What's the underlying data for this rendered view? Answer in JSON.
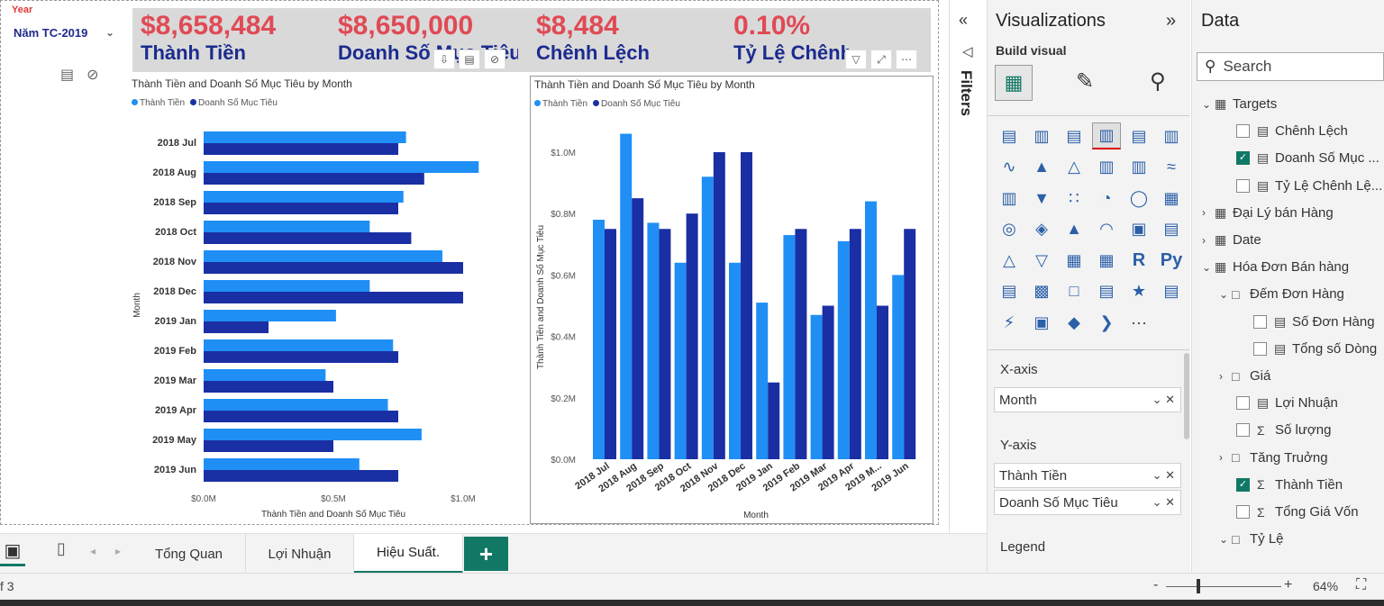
{
  "slicer": {
    "label": "Year",
    "value": "Năm TC-2019"
  },
  "kpis": [
    {
      "value": "$8,658,484",
      "label": "Thành Tiền"
    },
    {
      "value": "$8,650,000",
      "label": "Doanh Số Mục Tiêu"
    },
    {
      "value": "$8,484",
      "label": "Chênh Lệch"
    },
    {
      "value": "0.10%",
      "label": "Tỷ Lệ Chênh Lệch"
    }
  ],
  "colors": {
    "series1": "#1f8ff5",
    "series2": "#1a2fa3",
    "kpi_value": "#e04a55",
    "kpi_label": "#1b2b8f",
    "accent": "#117865"
  },
  "chart_data": [
    {
      "type": "bar",
      "orientation": "horizontal",
      "title": "Thành Tiền and Doanh Số Mục Tiêu by Month",
      "xlabel": "Thành Tiền and Doanh Số Mục Tiêu",
      "ylabel": "Month",
      "categories": [
        "2018 Jul",
        "2018 Aug",
        "2018 Sep",
        "2018 Oct",
        "2018 Nov",
        "2018 Dec",
        "2019 Jan",
        "2019 Feb",
        "2019 Mar",
        "2019 Apr",
        "2019 May",
        "2019 Jun"
      ],
      "series": [
        {
          "name": "Thành Tiền",
          "values": [
            0.78,
            1.06,
            0.77,
            0.64,
            0.92,
            0.64,
            0.51,
            0.73,
            0.47,
            0.71,
            0.84,
            0.6
          ]
        },
        {
          "name": "Doanh Số Mục Tiêu",
          "values": [
            0.75,
            0.85,
            0.75,
            0.8,
            1.0,
            1.0,
            0.25,
            0.75,
            0.5,
            0.75,
            0.5,
            0.75
          ]
        }
      ],
      "xticks": [
        "$0.0M",
        "$0.5M",
        "$1.0M"
      ],
      "xlim": [
        0,
        1.1
      ],
      "legend": "top-left"
    },
    {
      "type": "bar",
      "orientation": "vertical",
      "title": "Thành Tiền and Doanh Số Mục Tiêu by Month",
      "xlabel": "Month",
      "ylabel": "Thành Tiền and Doanh Số Mục Tiêu",
      "categories": [
        "2018 Jul",
        "2018 Aug",
        "2018 Sep",
        "2018 Oct",
        "2018 Nov",
        "2018 Dec",
        "2019 Jan",
        "2019 Feb",
        "2019 Mar",
        "2019 Apr",
        "2019 M...",
        "2019 Jun"
      ],
      "series": [
        {
          "name": "Thành Tiền",
          "values": [
            0.78,
            1.06,
            0.77,
            0.64,
            0.92,
            0.64,
            0.51,
            0.73,
            0.47,
            0.71,
            0.84,
            0.6
          ]
        },
        {
          "name": "Doanh Số Mục Tiêu",
          "values": [
            0.75,
            0.85,
            0.75,
            0.8,
            1.0,
            1.0,
            0.25,
            0.75,
            0.5,
            0.75,
            0.5,
            0.75
          ]
        }
      ],
      "yticks": [
        "$0.0M",
        "$0.2M",
        "$0.4M",
        "$0.6M",
        "$0.8M",
        "$1.0M"
      ],
      "ylim": [
        0,
        1.1
      ],
      "legend": "top-left"
    }
  ],
  "tabs": {
    "t1": "Tổng Quan",
    "t2": "Lợi Nhuận",
    "t3": "Hiệu Suất.",
    "add": "+"
  },
  "status": {
    "page": "f 3",
    "zoom": "64%",
    "minus": "-",
    "plus": "+"
  },
  "filters": {
    "label": "Filters"
  },
  "viz": {
    "title": "Visualizations",
    "build": "Build visual",
    "xaxis_label": "X-axis",
    "xaxis_field": "Month",
    "yaxis_label": "Y-axis",
    "yaxis_fields": [
      "Thành Tiền",
      "Doanh Số Mục Tiêu"
    ],
    "legend_label": "Legend",
    "icon_r": "R",
    "icon_py": "Py",
    "icon_more": "···"
  },
  "data_pane": {
    "title": "Data",
    "search": "Search",
    "rows": [
      {
        "text": "Targets",
        "type": "table",
        "indent": 0,
        "twisty": "open"
      },
      {
        "text": "Chênh Lệch",
        "type": "measure",
        "indent": 2,
        "checked": false
      },
      {
        "text": "Doanh Số Mục ...",
        "type": "measure",
        "indent": 2,
        "checked": true
      },
      {
        "text": "Tỷ Lệ Chênh Lệ...",
        "type": "measure",
        "indent": 2,
        "checked": false
      },
      {
        "text": "Đại Lý bán Hàng",
        "type": "table",
        "indent": 0,
        "twisty": "closed"
      },
      {
        "text": "Date",
        "type": "table",
        "indent": 0,
        "twisty": "closed"
      },
      {
        "text": "Hóa Đơn Bán hàng",
        "type": "table",
        "indent": 0,
        "twisty": "open"
      },
      {
        "text": "Đếm Đơn Hàng",
        "type": "folder",
        "indent": 1,
        "twisty": "open"
      },
      {
        "text": "Số Đơn Hàng",
        "type": "measure",
        "indent": 3,
        "checked": false
      },
      {
        "text": "Tổng số Dòng",
        "type": "measure",
        "indent": 3,
        "checked": false
      },
      {
        "text": "Giá",
        "type": "folder",
        "indent": 1,
        "twisty": "closed"
      },
      {
        "text": "Lợi Nhuận",
        "type": "measure",
        "indent": 2,
        "checked": false
      },
      {
        "text": "Số lượng",
        "type": "sum",
        "indent": 2,
        "checked": false
      },
      {
        "text": "Tăng Truởng",
        "type": "folder",
        "indent": 1,
        "twisty": "closed"
      },
      {
        "text": "Thành Tiền",
        "type": "sum",
        "indent": 2,
        "checked": true
      },
      {
        "text": "Tổng Giá Vốn",
        "type": "sum",
        "indent": 2,
        "checked": false
      },
      {
        "text": "Tỷ Lệ",
        "type": "folder",
        "indent": 1,
        "twisty": "open"
      }
    ]
  }
}
